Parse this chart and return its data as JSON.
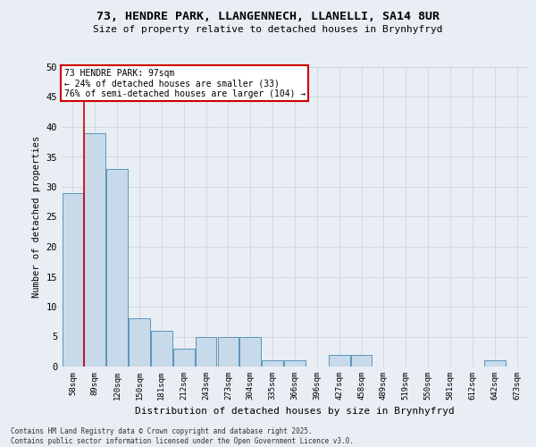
{
  "title_line1": "73, HENDRE PARK, LLANGENNECH, LLANELLI, SA14 8UR",
  "title_line2": "Size of property relative to detached houses in Brynhyfryd",
  "xlabel": "Distribution of detached houses by size in Brynhyfryd",
  "ylabel": "Number of detached properties",
  "categories": [
    "58sqm",
    "89sqm",
    "120sqm",
    "150sqm",
    "181sqm",
    "212sqm",
    "243sqm",
    "273sqm",
    "304sqm",
    "335sqm",
    "366sqm",
    "396sqm",
    "427sqm",
    "458sqm",
    "489sqm",
    "519sqm",
    "550sqm",
    "581sqm",
    "612sqm",
    "642sqm",
    "673sqm"
  ],
  "values": [
    29,
    39,
    33,
    8,
    6,
    3,
    5,
    5,
    5,
    1,
    1,
    0,
    2,
    2,
    0,
    0,
    0,
    0,
    0,
    1,
    0
  ],
  "bar_color": "#c8daea",
  "bar_edge_color": "#5a96bb",
  "grid_color": "#d0d8e0",
  "background_color": "#e8eef4",
  "annotation_text": "73 HENDRE PARK: 97sqm\n← 24% of detached houses are smaller (33)\n76% of semi-detached houses are larger (104) →",
  "annotation_box_color": "#ffffff",
  "annotation_box_edge": "#cc0000",
  "vline_color": "#cc0000",
  "vline_pos": 0.5,
  "ylim": [
    0,
    50
  ],
  "yticks": [
    0,
    5,
    10,
    15,
    20,
    25,
    30,
    35,
    40,
    45,
    50
  ],
  "footer_line1": "Contains HM Land Registry data © Crown copyright and database right 2025.",
  "footer_line2": "Contains public sector information licensed under the Open Government Licence v3.0."
}
